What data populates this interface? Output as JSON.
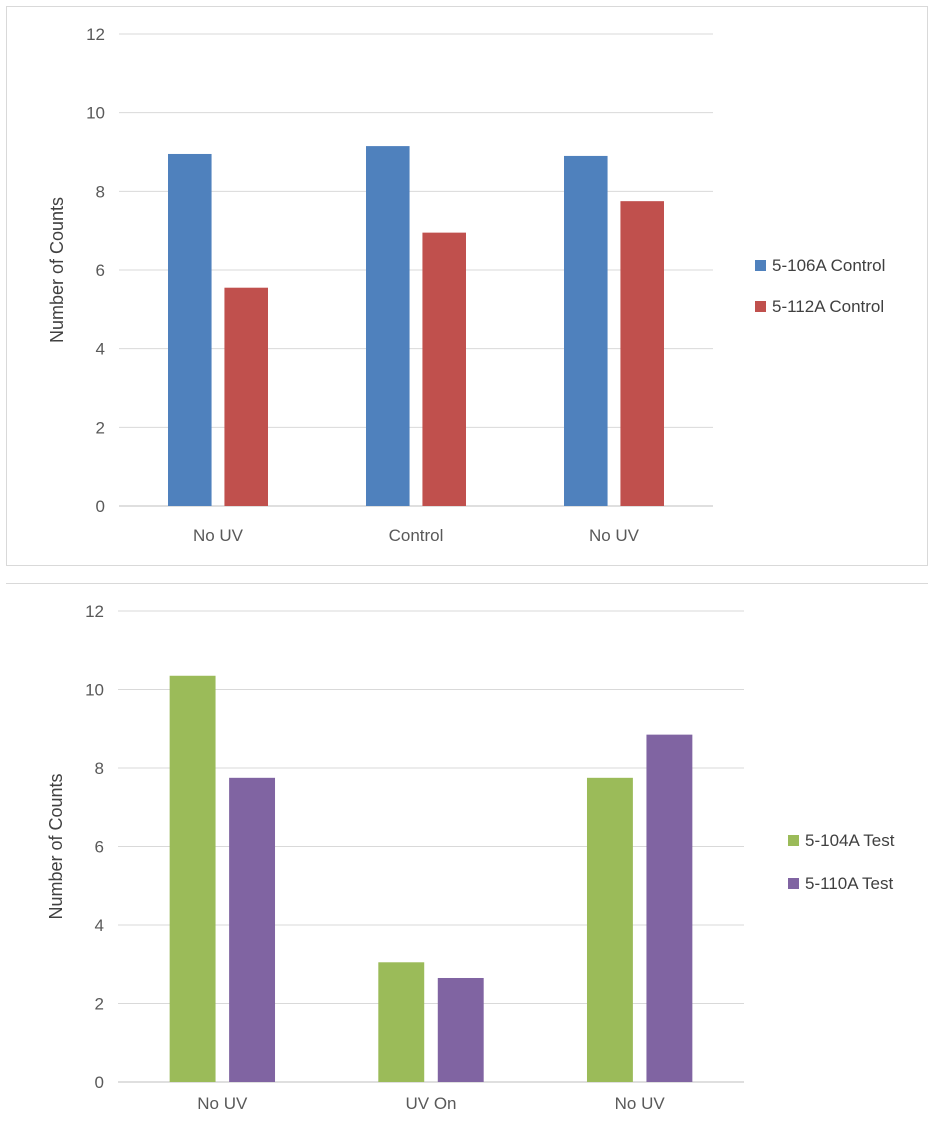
{
  "chart_data": [
    {
      "type": "bar",
      "title": "",
      "xlabel": "",
      "ylabel": "Number of Counts",
      "ylim": [
        0,
        12
      ],
      "yticks": [
        0,
        2,
        4,
        6,
        8,
        10,
        12
      ],
      "grid": true,
      "legend_position": "right",
      "categories": [
        "No UV",
        "Control",
        "No UV"
      ],
      "series": [
        {
          "name": "5-106A Control",
          "color": "#4f81bd",
          "values": [
            8.95,
            9.15,
            8.9
          ]
        },
        {
          "name": "5-112A Control",
          "color": "#c0504d",
          "values": [
            5.55,
            6.95,
            7.75
          ]
        }
      ]
    },
    {
      "type": "bar",
      "title": "",
      "xlabel": "",
      "ylabel": "Number of Counts",
      "ylim": [
        0,
        12
      ],
      "yticks": [
        0,
        2,
        4,
        6,
        8,
        10,
        12
      ],
      "grid": true,
      "legend_position": "right",
      "categories": [
        "No UV",
        "UV On",
        "No UV"
      ],
      "series": [
        {
          "name": "5-104A Test",
          "color": "#9bbb59",
          "values": [
            10.35,
            3.05,
            7.75
          ]
        },
        {
          "name": "5-110A Test",
          "color": "#8064a2",
          "values": [
            7.75,
            2.65,
            8.85
          ]
        }
      ]
    }
  ]
}
